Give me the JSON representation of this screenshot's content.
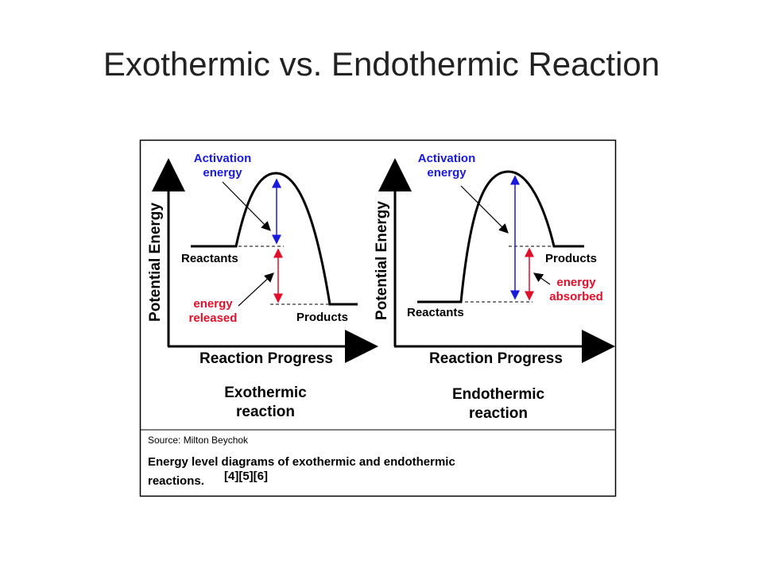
{
  "slide_title": "Exothermic vs. Endothermic Reaction",
  "figure": {
    "panels": [
      {
        "y_axis": "Potential Energy",
        "x_axis": "Reaction Progress",
        "activation": [
          "Activation",
          "energy"
        ],
        "reactants": "Reactants",
        "products": "Products",
        "energy_change": [
          "energy",
          "released"
        ],
        "caption": [
          "Exothermic",
          "reaction"
        ]
      },
      {
        "y_axis": "Potential Energy",
        "x_axis": "Reaction Progress",
        "activation": [
          "Activation",
          "energy"
        ],
        "reactants": "Reactants",
        "products": "Products",
        "energy_change": [
          "energy",
          "absorbed"
        ],
        "caption": [
          "Endothermic",
          "reaction"
        ]
      }
    ],
    "source": "Source: Milton Beychok",
    "description": [
      "Energy level diagrams of exothermic and endothermic",
      "reactions."
    ],
    "references": "[4][5][6]"
  }
}
